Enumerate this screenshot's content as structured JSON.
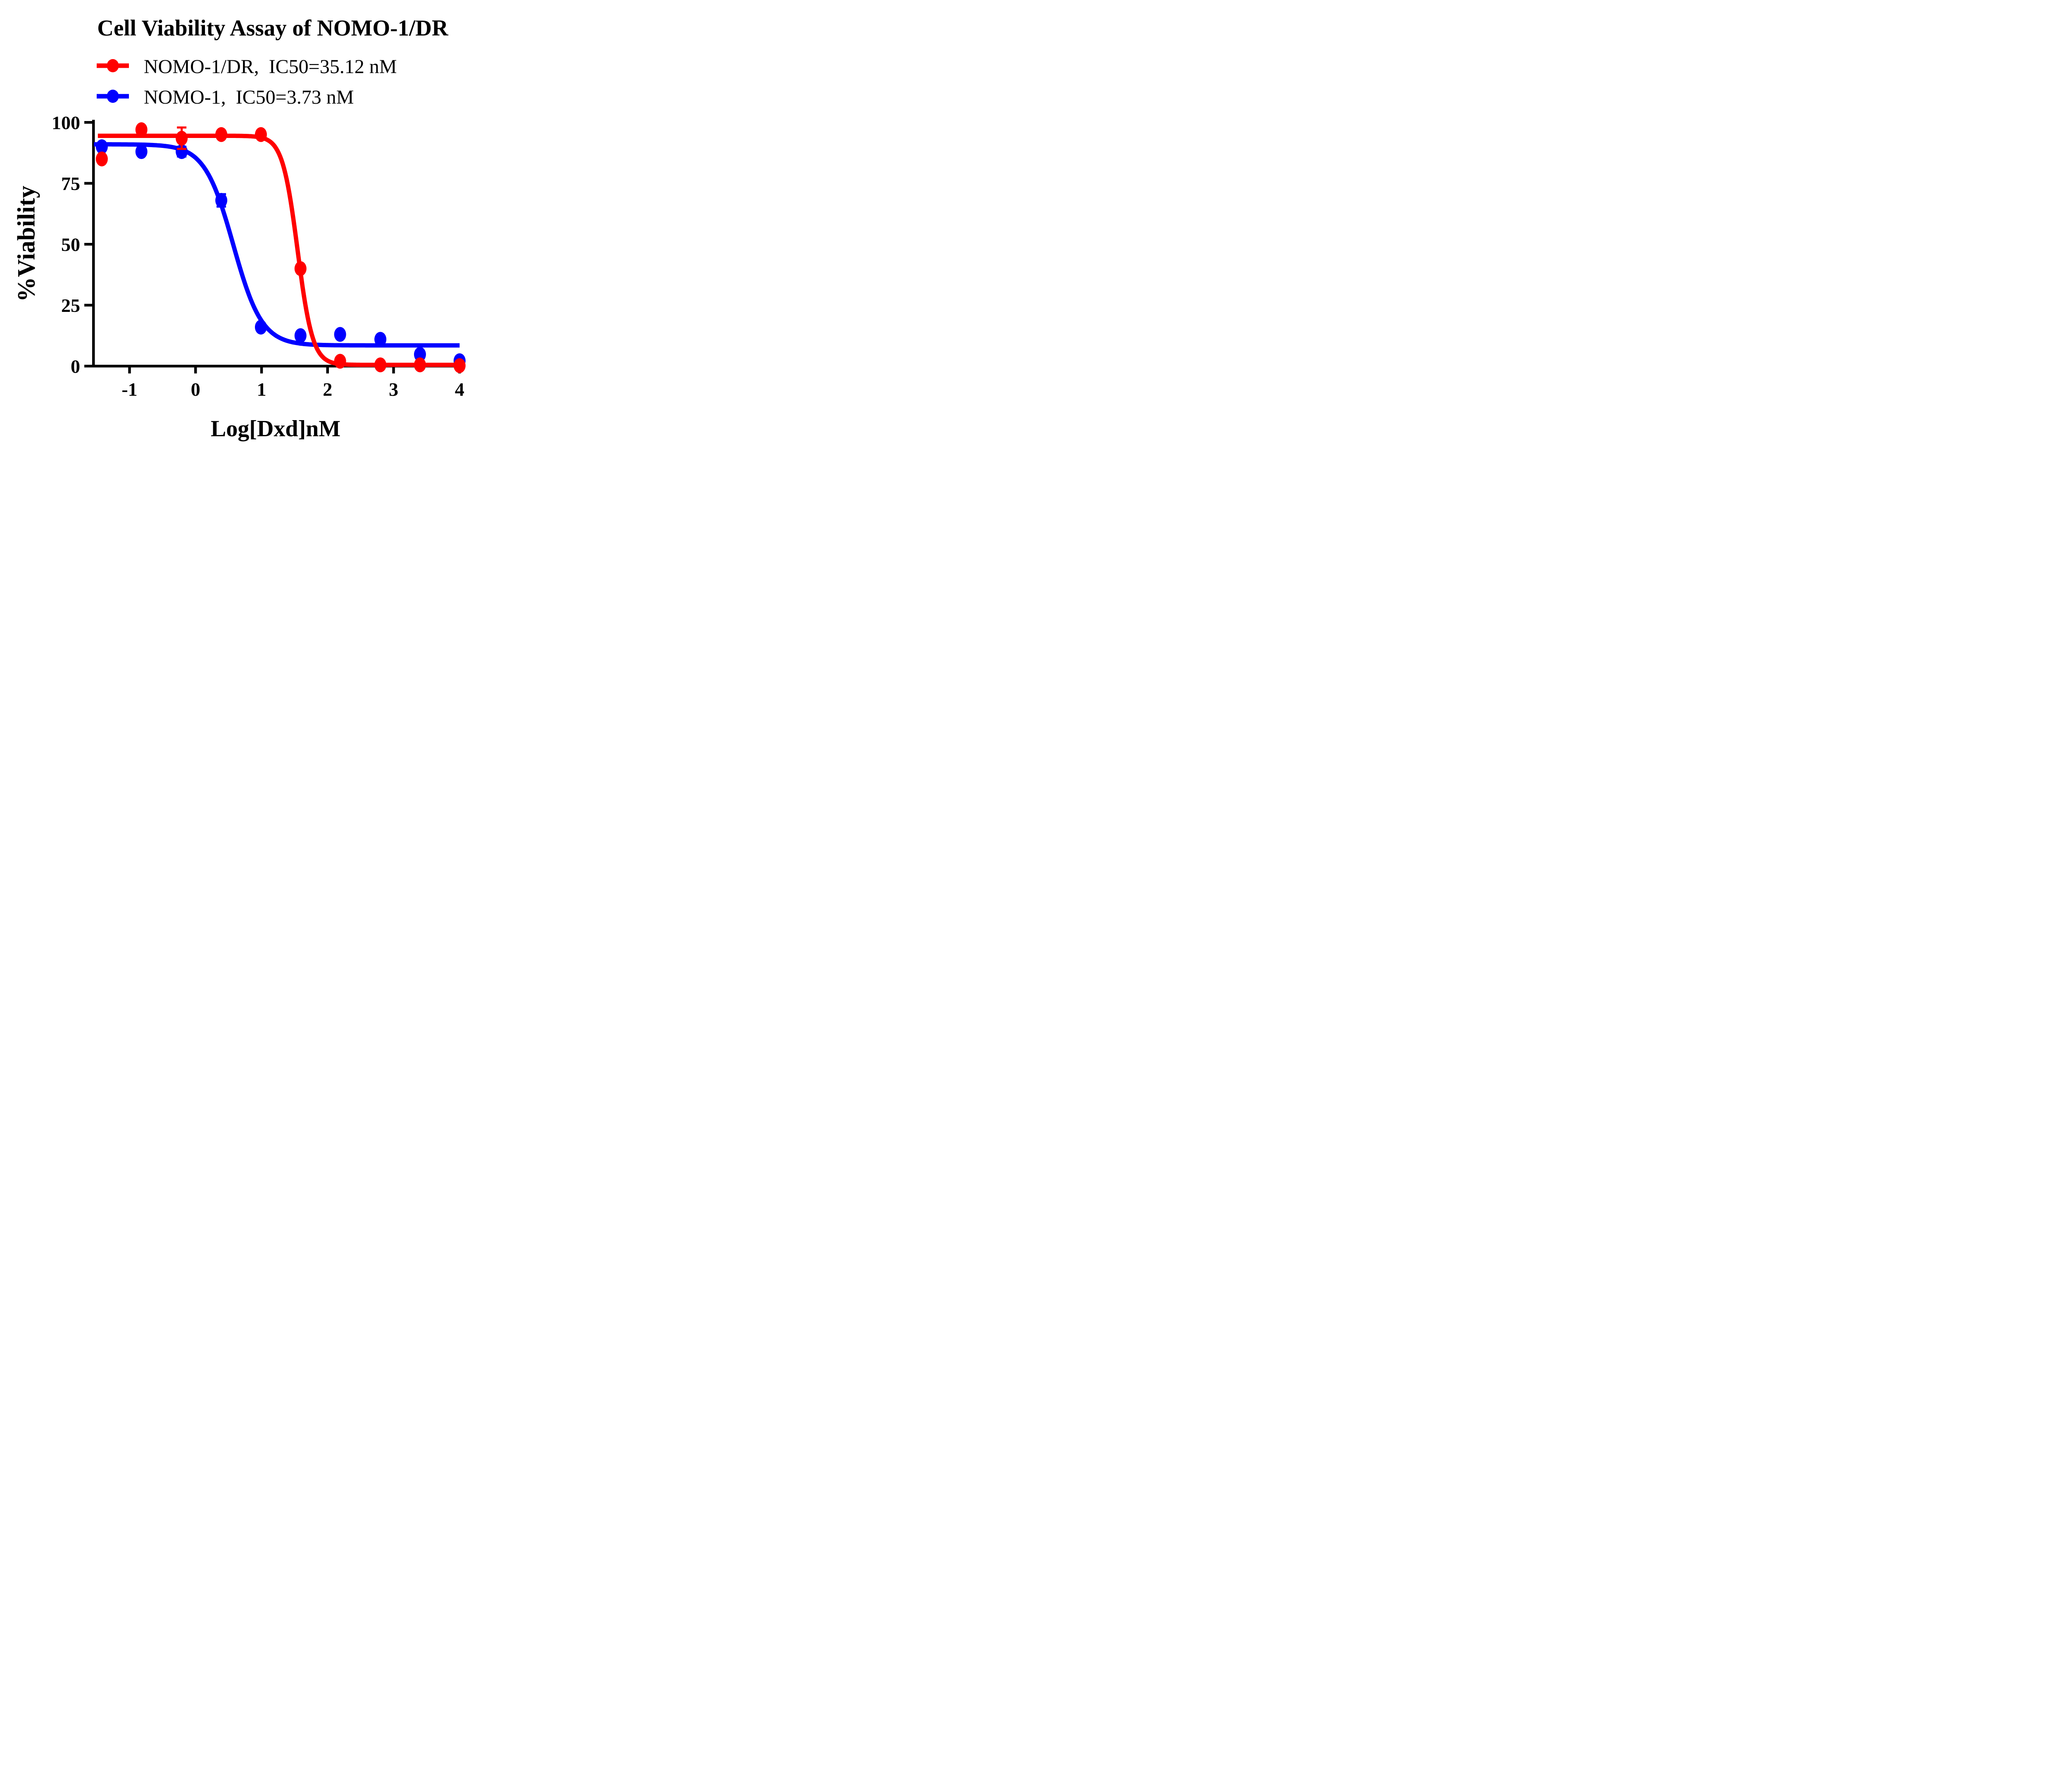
{
  "chart_data": {
    "type": "line",
    "title": "Cell Viability Assay of NOMO-1/DR",
    "xlabel": "Log[Dxd]nM",
    "ylabel": "%Viability",
    "xlim": [
      -1.55,
      4.1
    ],
    "ylim": [
      0,
      100
    ],
    "x_ticks": [
      -1,
      0,
      1,
      2,
      3,
      4
    ],
    "y_ticks": [
      0,
      25,
      50,
      75,
      100
    ],
    "grid": false,
    "legend_position": "top-left-above-plot",
    "background_color": "#ffffff",
    "axis_color": "#000000",
    "x": [
      -1.42,
      -0.82,
      -0.21,
      0.39,
      0.99,
      1.59,
      2.19,
      2.8,
      3.4,
      4.0
    ],
    "series": [
      {
        "name": "NOMO-1/DR",
        "label": "NOMO-1/DR,  IC50=35.12 nM",
        "ic50_nM": 35.12,
        "color": "#ff0000",
        "values": [
          85,
          97,
          93.5,
          95,
          95,
          40,
          2,
          0.5,
          0.5,
          0.2
        ],
        "errors": [
          0,
          0,
          4.4,
          0,
          0,
          0,
          0,
          0,
          0,
          0
        ],
        "fit": {
          "top": 94.5,
          "bottom": 0.5,
          "log_ic50": 1.546,
          "hill": 3.8,
          "x_start": -1.48,
          "x_end": 4.0
        }
      },
      {
        "name": "NOMO-1",
        "label": "NOMO-1,  IC50=3.73 nM",
        "ic50_nM": 3.73,
        "color": "#0000ff",
        "values": [
          90,
          88,
          88,
          68,
          16,
          12.5,
          13,
          11,
          4.8,
          2.2
        ],
        "errors": [
          0,
          0,
          2,
          2.55,
          0,
          0,
          0,
          0,
          0,
          0
        ],
        "fit": {
          "top": 91,
          "bottom": 8.5,
          "log_ic50": 0.572,
          "hill": 2.0,
          "x_start": -1.54,
          "x_end": 4.0
        }
      }
    ]
  }
}
